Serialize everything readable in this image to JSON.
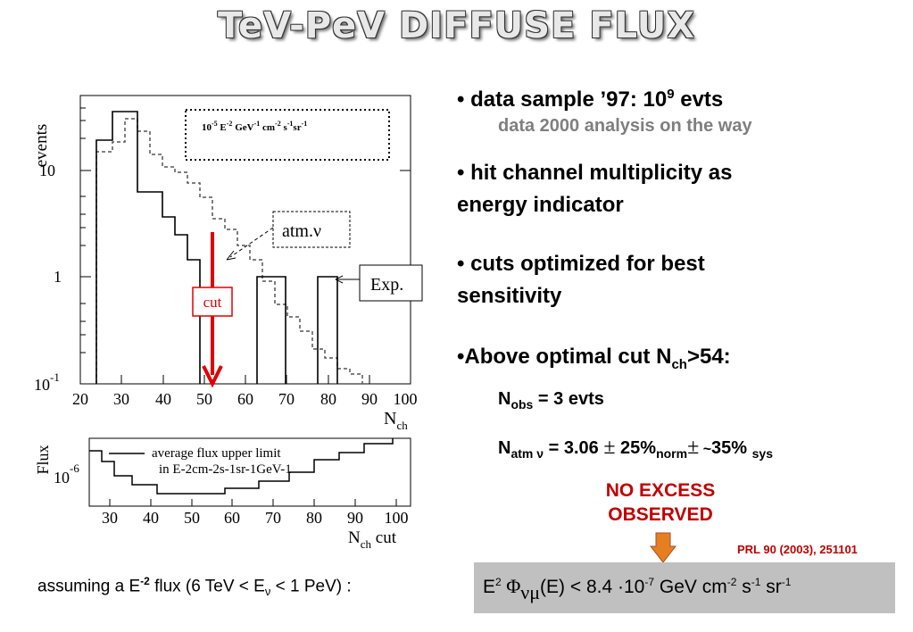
{
  "title": "TeV-PeV DIFFUSE FLUX",
  "bullets": {
    "b1_text": "data sample ’97: 10",
    "b1_sup": "9",
    "b1_tail": " evts",
    "b1_sub": "data 2000 analysis on the way",
    "b2_line1": "hit channel multiplicity as",
    "b2_line2": "energy indicator",
    "b3_line1": "cuts optimized for best",
    "b3_line2": "sensitivity",
    "b4_text": "Above optimal cut N",
    "b4_sub": "ch",
    "b4_tail": ">54:",
    "nobs_n": "N",
    "nobs_sub": "obs",
    "nobs_tail": " = 3 evts",
    "natm_n": "N",
    "natm_sub": "atm ν",
    "natm_val": " = 3.06 ",
    "natm_pm1": "±",
    "natm_pct1": " 25%",
    "natm_norm": "norm",
    "natm_pm2": "±",
    "natm_tilde": " ~",
    "natm_pct2": "35% ",
    "natm_sys": "sys"
  },
  "no_excess_line1": "NO EXCESS",
  "no_excess_line2": "OBSERVED",
  "reference": "PRL  90 (2003), 251101",
  "result": {
    "e": "E",
    "e_sup": "2",
    "phi": " Φ",
    "nu_mu": "νμ",
    "rest": "(E) < 8.4 ·10",
    "exp": "-7",
    "units": "  GeV cm",
    "u1": "-2",
    "u2": " s",
    "u3": "-1",
    "u4": " sr",
    "u5": "-1"
  },
  "assumption": {
    "text": "assuming a E",
    "sup": "-2",
    "mid": " flux (6 TeV < E",
    "sub": "ν",
    "tail": " < 1 PeV) :"
  },
  "plot_top": {
    "ylabel": "events",
    "xlabel_n": "N",
    "xlabel_sub": "ch",
    "ytick_10": "10",
    "ytick_1": "1",
    "ytick_exp_base": "10",
    "ytick_exp": "-1",
    "xticks": [
      "20",
      "30",
      "40",
      "50",
      "60",
      "70",
      "80",
      "90",
      "100"
    ],
    "signal_label": "10-5 E-2 GeV-1 cm-2 s-1sr-1",
    "sig_a": "10",
    "sig_a_sup": "-5",
    "sig_b": " E",
    "sig_b_sup": "-2",
    "sig_c": " GeV",
    "sig_c_sup": "-1",
    "sig_d": " cm",
    "sig_d_sup": "-2",
    "sig_e": " s",
    "sig_e_sup": "-1",
    "sig_f": "sr",
    "sig_f_sup": "-1",
    "atm_label": "atm.ν",
    "exp_label": "Exp.",
    "cut_label": "cut"
  },
  "plot_bottom": {
    "ylabel": "Flux",
    "ytick_base": "10",
    "ytick_exp": "-6",
    "legend_line1": "average flux upper limit",
    "legend_line2": "in E-2cm-2s-1sr-1GeV-1",
    "xticks": [
      "30",
      "40",
      "50",
      "60",
      "70",
      "80",
      "90",
      "100"
    ],
    "xlabel": "N",
    "xlabel_sub": "ch",
    "xlabel_tail": " cut"
  }
}
